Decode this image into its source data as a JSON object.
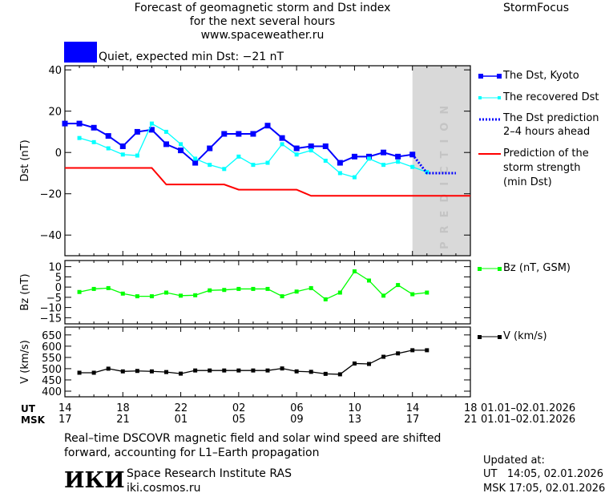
{
  "header": {
    "title_lines": [
      "Forecast of geomagnetic storm and Dst index",
      "for the next several hours",
      "www.spaceweather.ru"
    ],
    "brand": "StormFocus",
    "status_text": "Quiet, expected min Dst: −21 nT",
    "status_color": "#0000ff"
  },
  "legend": {
    "kyoto": "The Dst, Kyoto",
    "recovered": "The recovered Dst",
    "prediction_l1": "The Dst prediction",
    "prediction_l2": "2–4 hours ahead",
    "storm_l1": "Prediction of the",
    "storm_l2": "storm strength",
    "storm_l3": "(min Dst)",
    "bz": "Bz (nT, GSM)",
    "v": "V (km/s)"
  },
  "prediction_label": "PREDICTION",
  "time_axis": {
    "ut_label": "UT",
    "msk_label": "MSK",
    "ut_ticks": [
      "14",
      "18",
      "22",
      "02",
      "06",
      "10",
      "14",
      "18"
    ],
    "msk_ticks": [
      "17",
      "21",
      "01",
      "05",
      "09",
      "13",
      "17",
      "21"
    ],
    "ut_range": "01.01–02.01.2026",
    "msk_range": "01.01–02.01.2026"
  },
  "footer": {
    "note_l1": "Real–time DSCOVR magnetic field and solar wind speed are shifted",
    "note_l2": "forward, accounting for L1–Earth propagation",
    "logo": "ИКИ",
    "institute": "Space Research Institute RAS",
    "site": "iki.cosmos.ru",
    "updated_label": "Updated at:",
    "updated_ut": "UT   14:05, 02.01.2026",
    "updated_msk": "MSK 17:05, 02.01.2026"
  },
  "chart_data": [
    {
      "type": "line",
      "ylabel": "Dst (nT)",
      "ylim": [
        -50,
        42
      ],
      "yticks": [
        40,
        20,
        0,
        -20,
        -40
      ],
      "xlim_hours_ut_from_day1_00": [
        14,
        42
      ],
      "prediction_region_hours": [
        38,
        42
      ],
      "series": [
        {
          "name": "The Dst, Kyoto",
          "color": "#0000ff",
          "x": [
            14,
            15,
            16,
            17,
            18,
            19,
            20,
            21,
            22,
            23,
            24,
            25,
            26,
            27,
            28,
            29,
            30,
            31,
            32,
            33,
            34,
            35,
            36,
            37,
            38
          ],
          "values": [
            14,
            14,
            12,
            8,
            3,
            10,
            11,
            4,
            1,
            -5,
            2,
            9,
            9,
            9,
            13,
            7,
            2,
            3,
            3,
            -5,
            -2,
            -2,
            0,
            -2,
            -1
          ]
        },
        {
          "name": "The recovered Dst",
          "color": "#00ffff",
          "x": [
            15,
            16,
            17,
            18,
            19,
            20,
            21,
            22,
            23,
            24,
            25,
            26,
            27,
            28,
            29,
            30,
            31,
            32,
            33,
            34,
            35,
            36,
            37,
            38,
            39
          ],
          "values": [
            7,
            5,
            2,
            -1,
            -1.5,
            14,
            10,
            4,
            -3,
            -6,
            -8,
            -2,
            -6,
            -5,
            4,
            -1,
            1,
            -4,
            -10,
            -12,
            -3,
            -6,
            -4.5,
            -7,
            -9.5
          ]
        },
        {
          "name": "The Dst prediction 2–4 hours ahead",
          "color": "#0000ff",
          "style": "dotted",
          "x": [
            38,
            39,
            40,
            41
          ],
          "values": [
            -1,
            -10,
            -10,
            -10
          ]
        },
        {
          "name": "Prediction of the storm strength (min Dst)",
          "color": "#ff0000",
          "x": [
            14,
            20,
            21,
            25,
            26,
            30,
            31,
            42
          ],
          "values": [
            -7.5,
            -7.5,
            -15.5,
            -15.5,
            -18,
            -18,
            -21,
            -21
          ]
        }
      ]
    },
    {
      "type": "line",
      "ylabel": "Bz (nT)",
      "ylim": [
        -18,
        13
      ],
      "yticks": [
        10,
        5,
        0,
        -5,
        -10,
        -15
      ],
      "series": [
        {
          "name": "Bz (nT, GSM)",
          "color": "#00ff00",
          "x": [
            15,
            16,
            17,
            18,
            19,
            20,
            21,
            22,
            23,
            24,
            25,
            26,
            27,
            28,
            29,
            30,
            31,
            32,
            33,
            34,
            35,
            36,
            37,
            38,
            39
          ],
          "values": [
            -2.4,
            -0.9,
            -0.5,
            -3.2,
            -4.5,
            -4.5,
            -2.7,
            -4.2,
            -4,
            -1.6,
            -1.4,
            -0.9,
            -0.9,
            -0.9,
            -4.5,
            -2.2,
            -0.5,
            -6,
            -2.7,
            7.7,
            3.2,
            -4.2,
            1,
            -3.5,
            -2.7
          ]
        }
      ]
    },
    {
      "type": "line",
      "ylabel": "V (km/s)",
      "ylim": [
        375,
        685
      ],
      "yticks": [
        650,
        600,
        550,
        500,
        450,
        400
      ],
      "series": [
        {
          "name": "V (km/s)",
          "color": "#000000",
          "x": [
            15,
            16,
            17,
            18,
            19,
            20,
            21,
            22,
            23,
            24,
            25,
            26,
            27,
            28,
            29,
            30,
            31,
            32,
            33,
            34,
            35,
            36,
            37,
            38,
            39
          ],
          "values": [
            482,
            482,
            500,
            488,
            490,
            488,
            485,
            478,
            492,
            492,
            492,
            492,
            492,
            492,
            501,
            488,
            486,
            477,
            475,
            523,
            521,
            553,
            568,
            582,
            582
          ]
        }
      ]
    }
  ]
}
